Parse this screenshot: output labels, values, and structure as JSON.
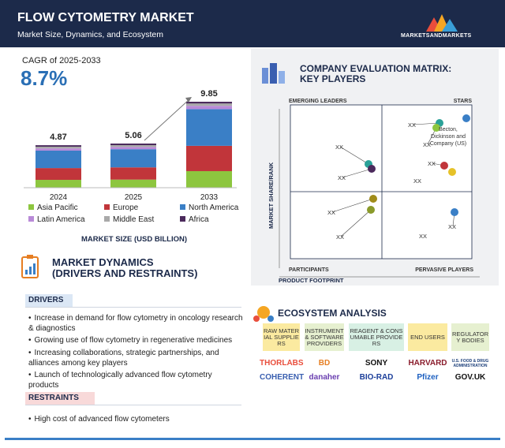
{
  "header": {
    "title": "FLOW CYTOMETRY MARKET",
    "subtitle": "Market Size, Dynamics, and Ecosystem",
    "logo": "MARKETSANDMARKETS"
  },
  "cagr": {
    "label": "CAGR of 2025-2033",
    "value": "8.7%"
  },
  "chart_data": {
    "type": "bar",
    "stacked": true,
    "categories": [
      "2024",
      "2025",
      "2033"
    ],
    "totals": [
      4.87,
      5.06,
      9.85
    ],
    "series": [
      {
        "name": "Asia Pacific",
        "color": "#8dc63f",
        "values": [
          0.9,
          0.93,
          1.9
        ]
      },
      {
        "name": "Europe",
        "color": "#c1353a",
        "values": [
          1.35,
          1.4,
          2.9
        ]
      },
      {
        "name": "North America",
        "color": "#3a7fc6",
        "values": [
          2.0,
          2.08,
          4.2
        ]
      },
      {
        "name": "Latin America",
        "color": "#b98ad8",
        "values": [
          0.25,
          0.26,
          0.38
        ]
      },
      {
        "name": "Middle East",
        "color": "#a9a9a9",
        "values": [
          0.2,
          0.21,
          0.27
        ]
      },
      {
        "name": "Africa",
        "color": "#4b2a5c",
        "values": [
          0.17,
          0.18,
          0.2
        ]
      }
    ],
    "xlabel": "MARKET SIZE (USD BILLION)"
  },
  "dynamics": {
    "title": "MARKET DYNAMICS",
    "subtitle": "(DRIVERS AND RESTRAINTS)",
    "drivers_title": "DRIVERS",
    "drivers": [
      "Increase in demand for flow cytometry in oncology research & diagnostics",
      "Growing use of flow cytometry in regenerative medicines",
      "Increasing collaborations, strategic partnerships, and alliances among key players",
      "Launch of technologically advanced flow cytometry products"
    ],
    "restraints_title": "RESTRAINTS",
    "restraints": [
      "High cost of advanced flow cytometers"
    ]
  },
  "matrix": {
    "title": "COMPANY EVALUATION MATRIX:",
    "subtitle": "KEY PLAYERS",
    "quadrants": [
      "EMERGING LEADERS",
      "STARS",
      "PARTICIPANTS",
      "PERVASIVE PLAYERS"
    ],
    "y_label": "MARKET SHARE/RANK",
    "x_label": "PRODUCT FOOTPRINT",
    "labels": [
      "XX",
      "XX",
      "XX",
      "XX",
      "XX",
      "XX",
      "XX",
      "XX",
      "XX",
      "XX"
    ],
    "highlight": "Becton, Dickinson and Company (US)"
  },
  "ecosystem": {
    "title": "ECOSYSTEM ANALYSIS",
    "columns": [
      {
        "header": "RAW MATERIAL SUPPLIERS",
        "logos": [
          "THORLABS",
          "COHERENT"
        ]
      },
      {
        "header": "INSTRUMENT & SOFTWARE PROVIDERS",
        "logos": [
          "BD",
          "danaher"
        ]
      },
      {
        "header": "REAGENT & CONSUMABLE PROVIDERS",
        "logos": [
          "SONY",
          "BIO-RAD"
        ]
      },
      {
        "header": "END USERS",
        "logos": [
          "HARVARD",
          "Pfizer"
        ]
      },
      {
        "header": "REGULATORY BODIES",
        "logos": [
          "U.S. FOOD & DRUG ADMINISTRATION",
          "GOV.UK"
        ]
      }
    ]
  }
}
